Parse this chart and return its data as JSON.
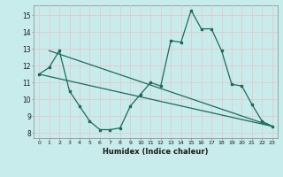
{
  "xlabel": "Humidex (Indice chaleur)",
  "bg_color": "#c8ecec",
  "grid_color": "#b8d8d8",
  "line_color": "#1a6b5a",
  "xlim_min": -0.5,
  "xlim_max": 23.5,
  "ylim_min": 7.7,
  "ylim_max": 15.6,
  "yticks": [
    8,
    9,
    10,
    11,
    12,
    13,
    14,
    15
  ],
  "xticks": [
    0,
    1,
    2,
    3,
    4,
    5,
    6,
    7,
    8,
    9,
    10,
    11,
    12,
    13,
    14,
    15,
    16,
    17,
    18,
    19,
    20,
    21,
    22,
    23
  ],
  "line1_x": [
    0,
    1,
    2,
    3,
    4,
    5,
    6,
    7,
    8,
    9,
    10,
    11,
    12,
    13,
    14,
    15,
    16,
    17,
    18,
    19,
    20,
    21,
    22,
    23
  ],
  "line1_y": [
    11.5,
    11.9,
    12.9,
    10.5,
    9.6,
    8.7,
    8.2,
    8.2,
    8.3,
    9.6,
    10.3,
    11.0,
    10.8,
    13.5,
    13.4,
    15.3,
    14.2,
    14.2,
    12.9,
    10.9,
    10.8,
    9.7,
    8.7,
    8.4
  ],
  "line2_x": [
    1,
    23
  ],
  "line2_y": [
    12.9,
    8.4
  ],
  "line3_x": [
    0,
    23
  ],
  "line3_y": [
    11.5,
    8.4
  ]
}
